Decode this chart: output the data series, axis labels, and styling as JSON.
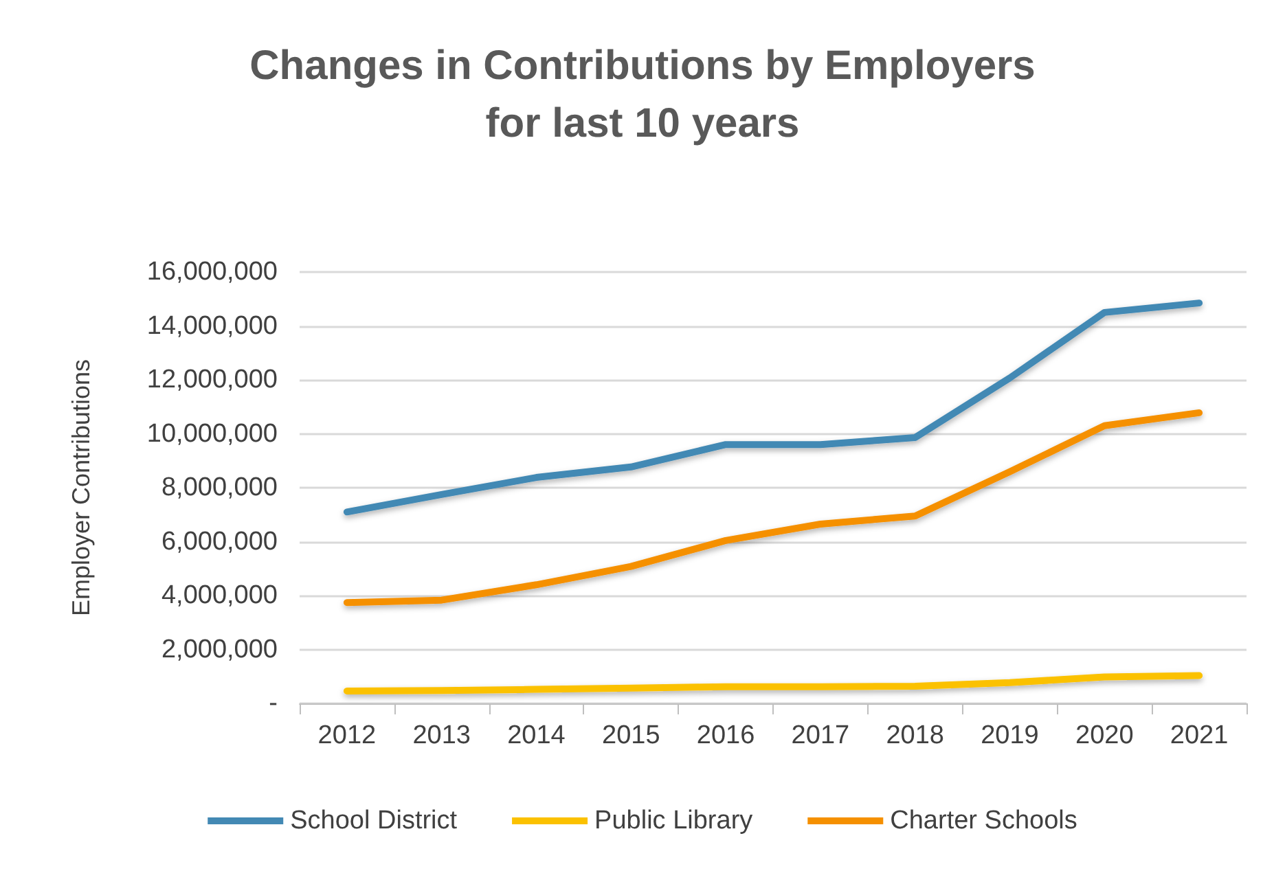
{
  "chart_data": {
    "type": "line",
    "title": "Changes in Contributions by Employers\nfor last 10 years",
    "ylabel": "Employer Contributions",
    "categories": [
      "2012",
      "2013",
      "2014",
      "2015",
      "2016",
      "2017",
      "2018",
      "2019",
      "2020",
      "2021"
    ],
    "series": [
      {
        "name": "School District",
        "color": "#4389b4",
        "values": [
          7100000,
          7750000,
          8380000,
          8770000,
          9600000,
          9600000,
          9860000,
          12070000,
          14500000,
          14850000
        ]
      },
      {
        "name": "Public Library",
        "color": "#fbc100",
        "values": [
          460000,
          480000,
          520000,
          570000,
          620000,
          620000,
          640000,
          770000,
          980000,
          1030000
        ]
      },
      {
        "name": "Charter Schools",
        "color": "#f59000",
        "values": [
          3740000,
          3830000,
          4400000,
          5080000,
          6040000,
          6650000,
          6950000,
          8590000,
          10300000,
          10780000
        ]
      }
    ],
    "ylim": [
      0,
      16000000
    ],
    "yticks": [
      {
        "value": 0,
        "label": "-"
      },
      {
        "value": 2000000,
        "label": "2,000,000"
      },
      {
        "value": 4000000,
        "label": "4,000,000"
      },
      {
        "value": 6000000,
        "label": "6,000,000"
      },
      {
        "value": 8000000,
        "label": "8,000,000"
      },
      {
        "value": 10000000,
        "label": "10,000,000"
      },
      {
        "value": 12000000,
        "label": "12,000,000"
      },
      {
        "value": 14000000,
        "label": "14,000,000"
      },
      {
        "value": 16000000,
        "label": "16,000,000"
      }
    ],
    "grid": "y",
    "legend": "bottom",
    "marker": "none",
    "line_style": "solid"
  }
}
